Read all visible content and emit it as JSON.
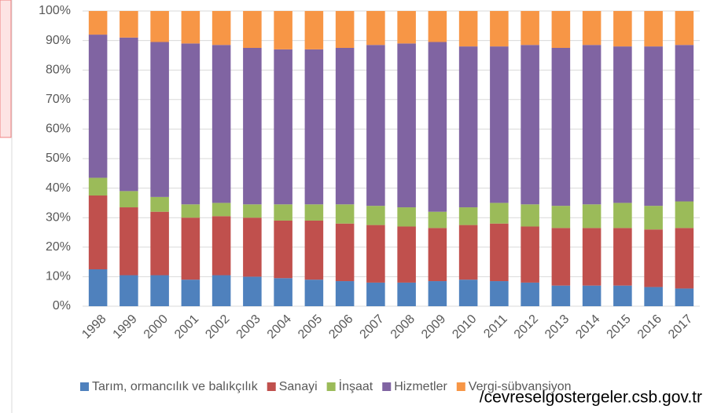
{
  "chart_data": {
    "type": "stacked_bar",
    "categories": [
      "1998",
      "1999",
      "2000",
      "2001",
      "2002",
      "2003",
      "2004",
      "2005",
      "2006",
      "2007",
      "2008",
      "2009",
      "2010",
      "2011",
      "2012",
      "2013",
      "2014",
      "2015",
      "2016",
      "2017"
    ],
    "series": [
      {
        "name": "Tarım, ormancılık ve balıkçılık",
        "color": "#4f81bd",
        "values": [
          12.5,
          10.5,
          10.5,
          9,
          10.5,
          10,
          9.5,
          9,
          8.5,
          8,
          8,
          8.5,
          9,
          8.5,
          8,
          7,
          7,
          7,
          6.5,
          6
        ]
      },
      {
        "name": "Sanayi",
        "color": "#c0504d",
        "values": [
          25,
          23,
          21.5,
          21,
          20,
          20,
          19.5,
          20,
          19.5,
          19.5,
          19,
          18,
          18.5,
          19.5,
          19,
          19.5,
          19.5,
          19.5,
          19.5,
          20.5
        ]
      },
      {
        "name": "İnşaat",
        "color": "#9bbb59",
        "values": [
          6,
          5.5,
          5,
          4.5,
          4.5,
          4.5,
          5.5,
          5.5,
          6.5,
          6.5,
          6.5,
          5.5,
          6,
          7,
          7.5,
          7.5,
          8,
          8.5,
          8,
          9
        ]
      },
      {
        "name": "Hizmetler",
        "color": "#8064a2",
        "values": [
          48.5,
          52,
          52.5,
          54.5,
          53.5,
          53,
          52.5,
          52.5,
          53,
          54.5,
          55.5,
          57.5,
          54.5,
          53,
          54,
          53.5,
          54,
          53,
          54,
          53
        ]
      },
      {
        "name": "Vergi-sübvansiyon",
        "color": "#f79646",
        "values": [
          8,
          9,
          10.5,
          11,
          11.5,
          12.5,
          13,
          13,
          12.5,
          11.5,
          11,
          10.5,
          12,
          12,
          11.5,
          12.5,
          11.5,
          12,
          12,
          11.5
        ]
      }
    ],
    "ylim": [
      0,
      100
    ],
    "yticks": [
      {
        "value": 0,
        "label": "0%"
      },
      {
        "value": 10,
        "label": "10%"
      },
      {
        "value": 20,
        "label": "20%"
      },
      {
        "value": 30,
        "label": "30%"
      },
      {
        "value": 40,
        "label": "40%"
      },
      {
        "value": 50,
        "label": "50%"
      },
      {
        "value": 60,
        "label": "60%"
      },
      {
        "value": 70,
        "label": "70%"
      },
      {
        "value": 80,
        "label": "80%"
      },
      {
        "value": 90,
        "label": "90%"
      },
      {
        "value": 100,
        "label": "100%"
      }
    ],
    "grid": true,
    "legend": "bottom",
    "source": "/cevreselgostergeler.csb.gov.tr"
  }
}
